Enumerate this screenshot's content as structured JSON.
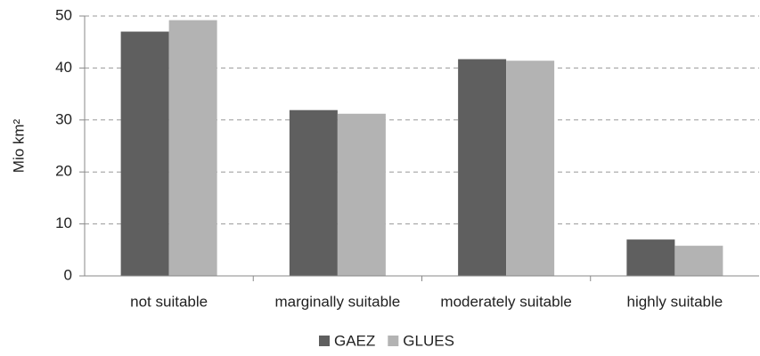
{
  "chart_data": {
    "type": "bar",
    "y_label": "Mio km²",
    "categories": [
      "not suitable",
      "marginally suitable",
      "moderately suitable",
      "highly suitable"
    ],
    "series": [
      {
        "name": "GAEZ",
        "color": "#5f5f5f",
        "values": [
          47,
          31.9,
          41.7,
          7
        ]
      },
      {
        "name": "GLUES",
        "color": "#b3b3b3",
        "values": [
          49.2,
          31.2,
          41.4,
          5.8
        ]
      }
    ],
    "ylim": [
      0,
      50
    ],
    "yticks": [
      0,
      10,
      20,
      30,
      40,
      50
    ],
    "grid": true,
    "legend": "bottom"
  }
}
